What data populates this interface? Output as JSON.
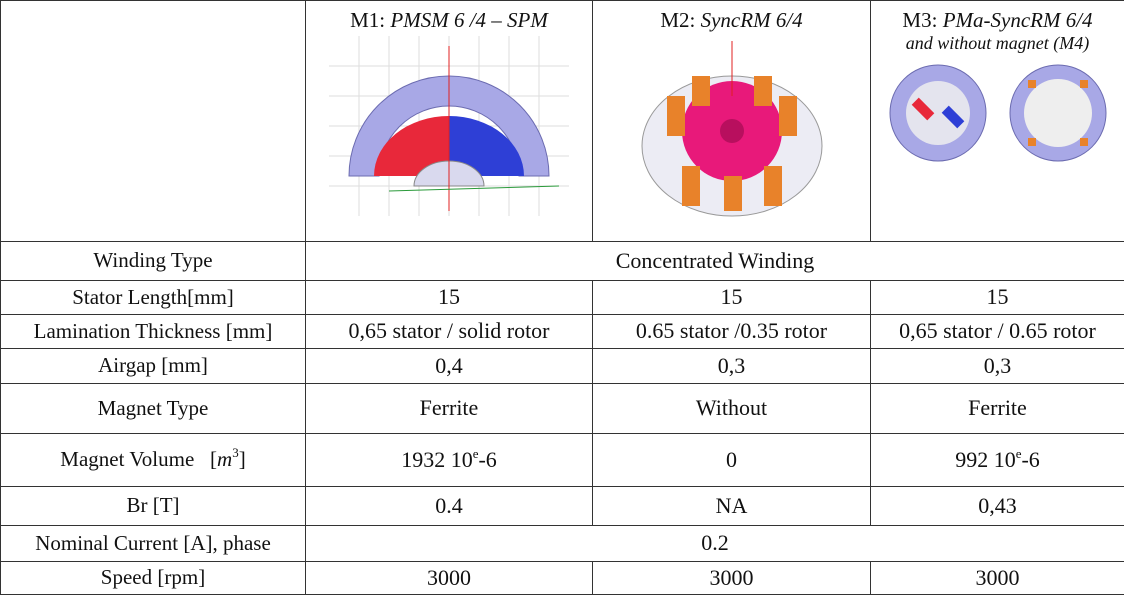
{
  "header": {
    "columns": [
      {
        "id": "M1:",
        "name": "PMSM 6 /4 – SPM"
      },
      {
        "id": "M2:",
        "name": "SyncRM 6/4"
      },
      {
        "id": "M3:",
        "name": "PMa-SyncRM 6/4",
        "note": "and without magnet (M4)"
      }
    ]
  },
  "table": {
    "rows": [
      {
        "label": "Winding Type",
        "cells": [
          "Concentrated Winding"
        ]
      },
      {
        "label": "Stator Length[mm]",
        "cells": [
          "15",
          "15",
          "15"
        ]
      },
      {
        "label": "Lamination Thickness [mm]",
        "cells": [
          "0,65 stator / solid rotor",
          "0.65 stator /0.35 rotor",
          "0,65 stator / 0.65 rotor"
        ]
      },
      {
        "label": "Airgap [mm]",
        "cells": [
          "0,4",
          "0,3",
          "0,3"
        ]
      },
      {
        "label": "Magnet Type",
        "cells": [
          "Ferrite",
          "Without",
          "Ferrite"
        ]
      },
      {
        "label": "Magnet Volume",
        "unit": {
          "open": "[",
          "symbol": "m",
          "exponent": "3",
          "close": "]"
        },
        "cells": [
          {
            "base": "1932 10",
            "sup": "e",
            "tail": "-6"
          },
          "0",
          {
            "base": "992 10",
            "sup": "e",
            "tail": "-6"
          }
        ]
      },
      {
        "label": "Br [T]",
        "cells": [
          "0.4",
          "NA",
          "0,43"
        ]
      },
      {
        "label": "Nominal Current [A], phase",
        "cells": [
          "0.2"
        ]
      },
      {
        "label": "Speed [rpm]",
        "cells": [
          "3000",
          "3000",
          "3000"
        ]
      }
    ]
  }
}
